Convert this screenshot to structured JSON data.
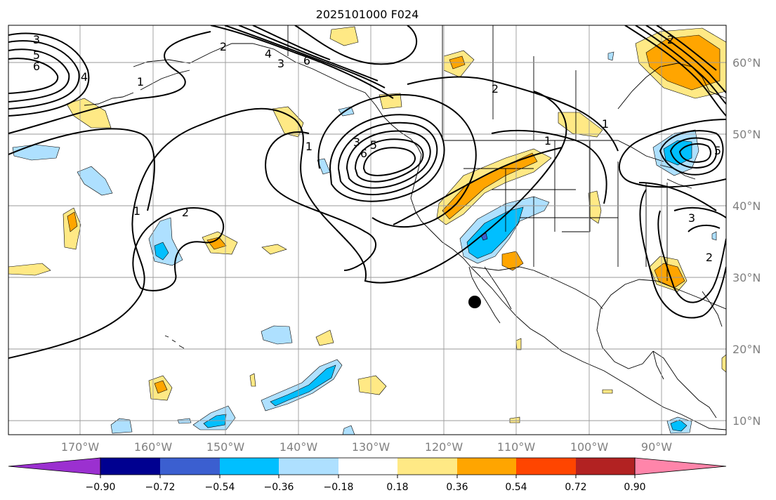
{
  "title": "2025101000 F024",
  "lon_axis": {
    "ticks": [
      "170°W",
      "160°W",
      "150°W",
      "140°W",
      "130°W",
      "120°W",
      "110°W",
      "100°W",
      "90°W"
    ],
    "values": [
      -170,
      -160,
      -150,
      -140,
      -130,
      -120,
      -110,
      -100,
      -90
    ]
  },
  "lat_axis": {
    "ticks": [
      "10°N",
      "20°N",
      "30°N",
      "40°N",
      "50°N",
      "60°N"
    ],
    "values": [
      10,
      20,
      30,
      40,
      50,
      60
    ]
  },
  "colorbar": {
    "tick_labels": [
      "−0.90",
      "−0.72",
      "−0.54",
      "−0.36",
      "−0.18",
      "0.18",
      "0.36",
      "0.54",
      "0.72",
      "0.90"
    ],
    "colors": [
      "#9b30d0",
      "#000090",
      "#3b5fd0",
      "#00bfff",
      "#aee0ff",
      "#ffffff",
      "#ffe985",
      "#ffa500",
      "#ff4500",
      "#b22222",
      "#ff85aa"
    ]
  },
  "contour_labels": [
    {
      "text": "3"
    },
    {
      "text": "5"
    },
    {
      "text": "6"
    },
    {
      "text": "4"
    },
    {
      "text": "2"
    },
    {
      "text": "1"
    },
    {
      "text": "1"
    },
    {
      "text": "2"
    },
    {
      "text": "3"
    },
    {
      "text": "5"
    },
    {
      "text": "6"
    },
    {
      "text": "1"
    },
    {
      "text": "2"
    },
    {
      "text": "1"
    },
    {
      "text": "6"
    },
    {
      "text": "4"
    },
    {
      "text": "3"
    },
    {
      "text": "2"
    },
    {
      "text": "5"
    },
    {
      "text": "3"
    },
    {
      "text": "2"
    },
    {
      "text": "1"
    }
  ],
  "colors": {
    "black": "#000000",
    "grid": "#9a9a9a",
    "tick_text": "#808080"
  }
}
